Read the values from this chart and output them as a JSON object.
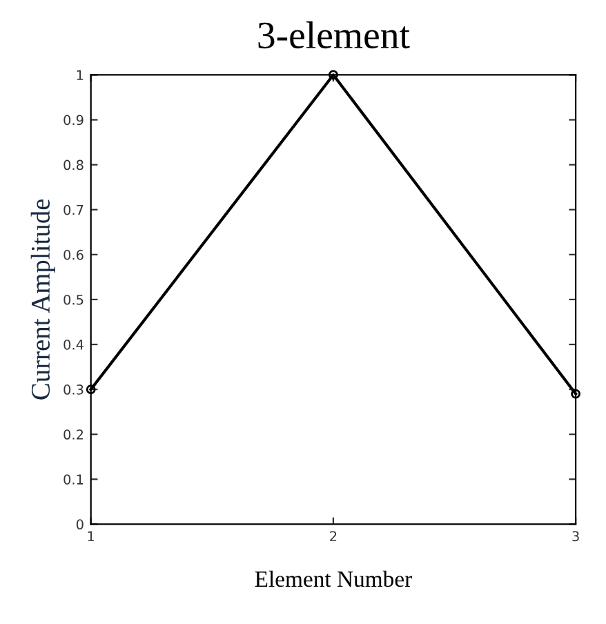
{
  "chart_data": {
    "type": "line",
    "title": "3-element",
    "xlabel": "Element Number",
    "ylabel": "Current Amplitude",
    "x": [
      1,
      2,
      3
    ],
    "series": [
      {
        "color": "#000000",
        "values": [
          0.3,
          1,
          0.29
        ]
      }
    ],
    "xlim": [
      1,
      3
    ],
    "xticks": [
      1,
      2,
      3
    ],
    "ylim": [
      0,
      1
    ],
    "yticks": [
      0,
      0.1,
      0.2,
      0.3,
      0.4,
      0.5,
      0.6,
      0.7,
      0.8,
      0.9,
      1
    ],
    "grid": false,
    "legend": false,
    "marker": "circle",
    "line_style": "solid"
  }
}
